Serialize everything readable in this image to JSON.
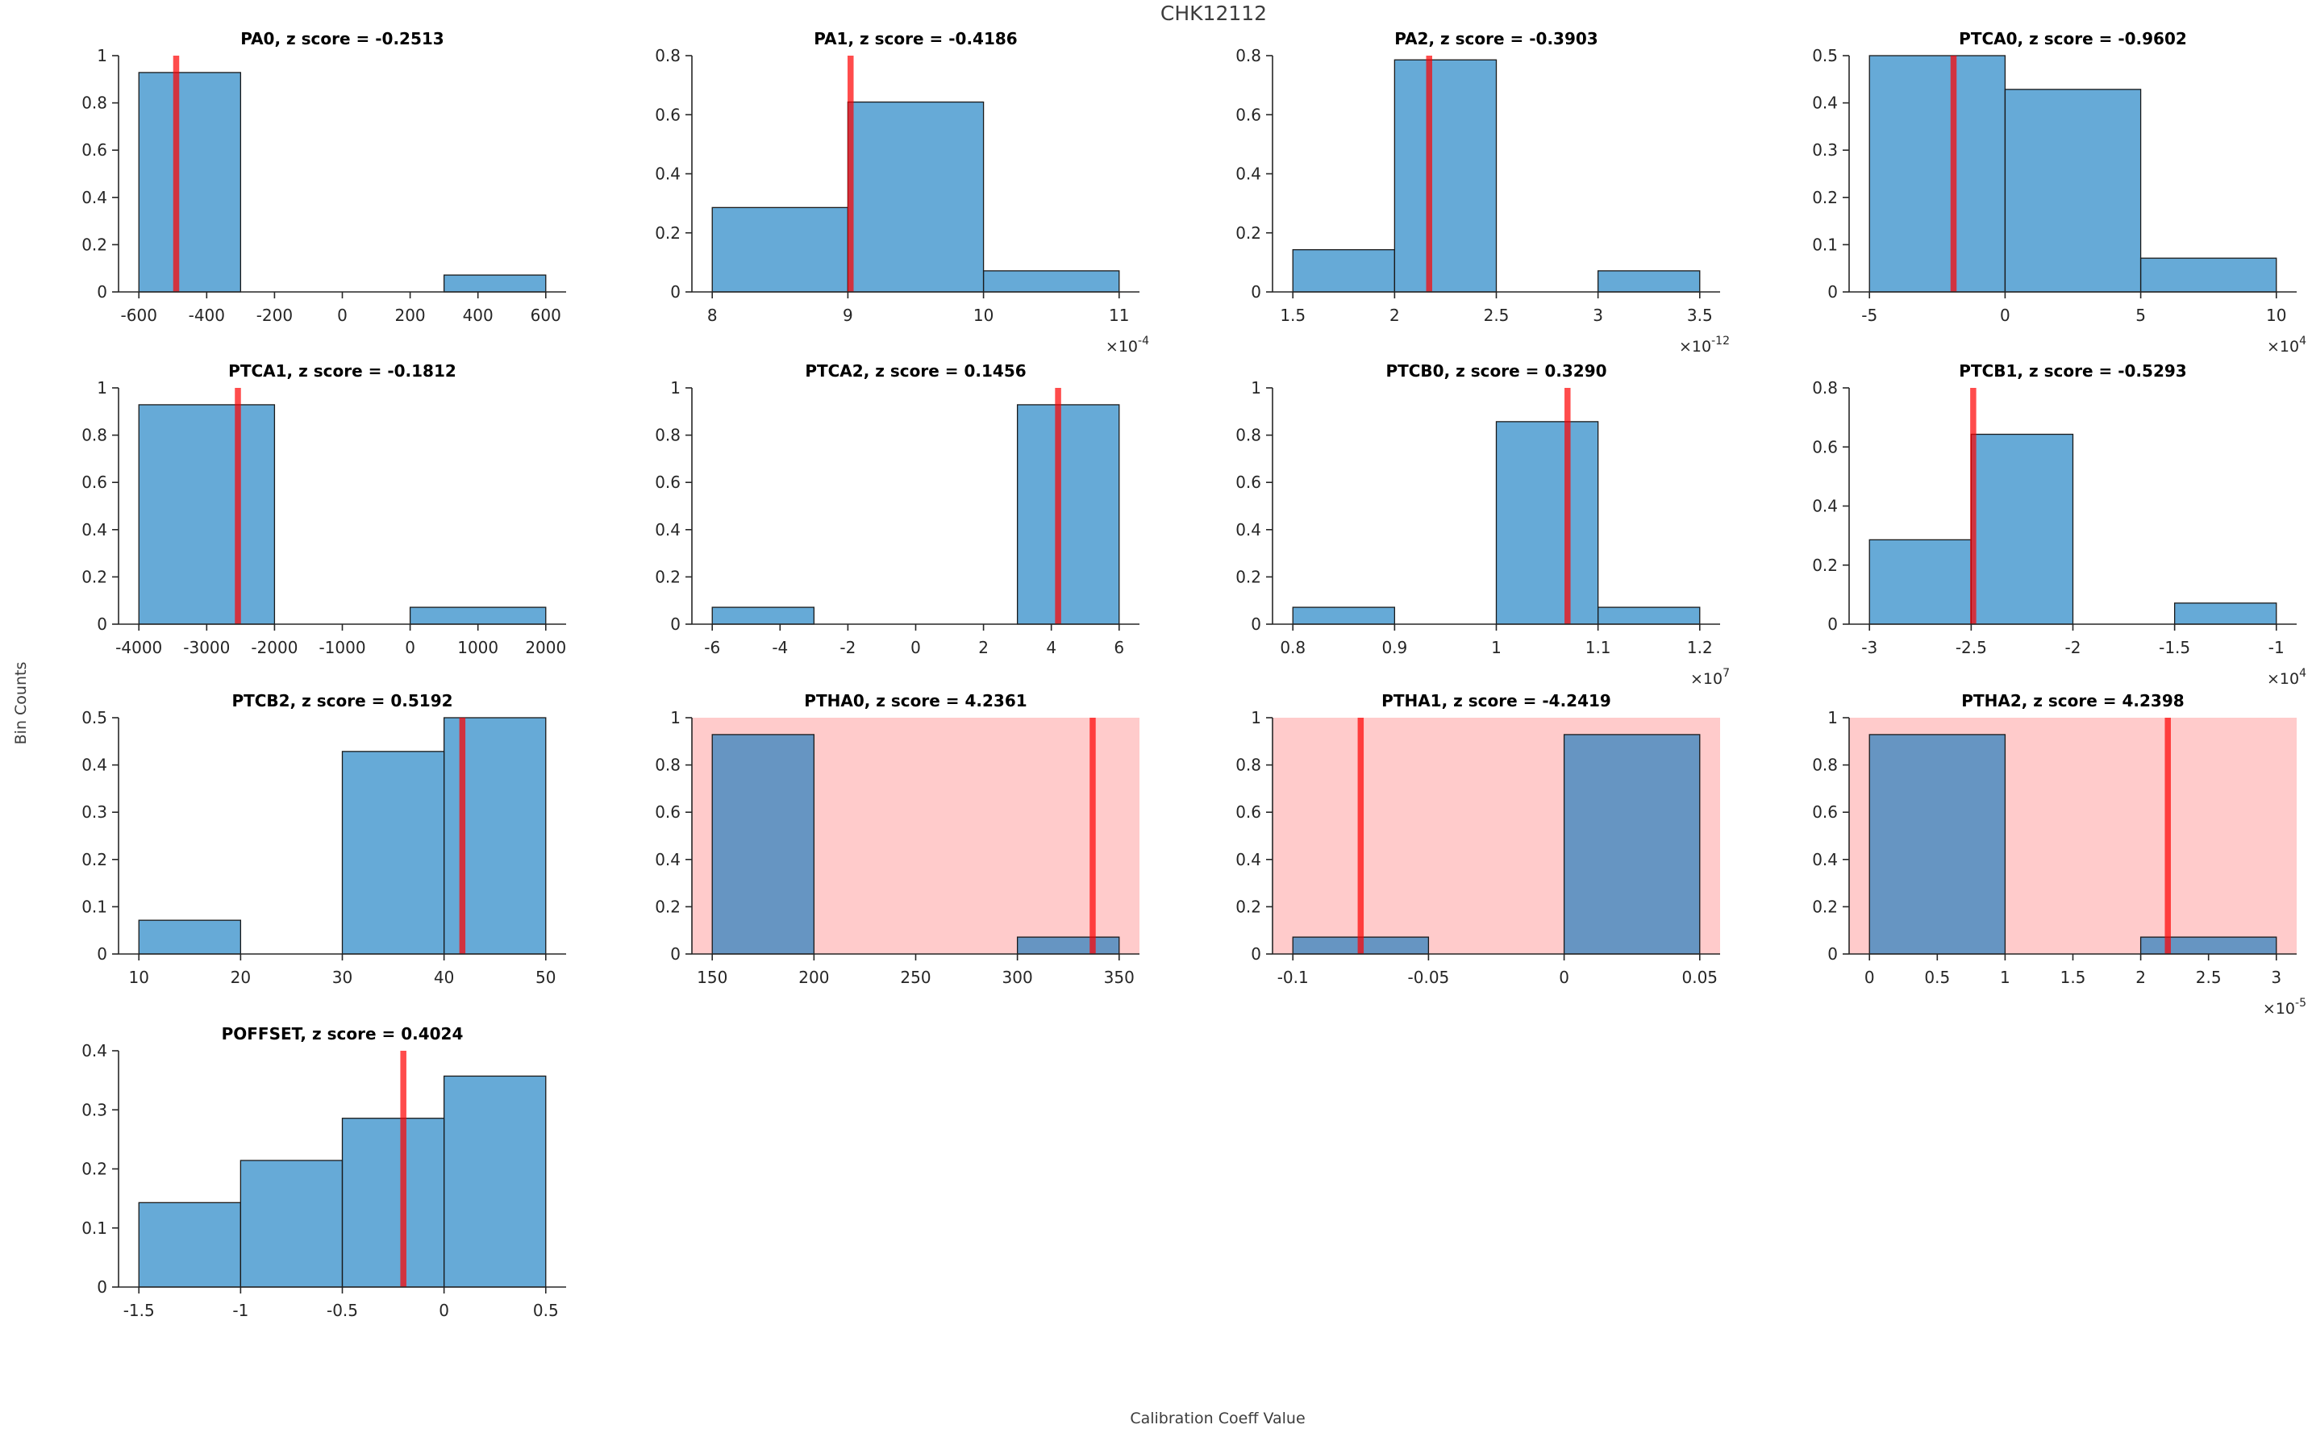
{
  "figure": {
    "title": "CHK12112",
    "ylabel": "Bin Counts",
    "xlabel": "Calibration Coeff Value",
    "colors": {
      "bar_fill": "#0072BD",
      "bar_fill_opacity": 0.6,
      "bar_edge": "#1a1a1a",
      "marker_line": "#FF0000",
      "marker_opacity": 0.7,
      "flagged_background": "#FFCBCB",
      "axis": "#262626",
      "subplot_title": "#000000",
      "figure_text": "#3c3c3c"
    }
  },
  "chart_data": [
    {
      "type": "histogram",
      "name": "PA0",
      "title": "PA0, z score = -0.2513",
      "z_score": -0.2513,
      "row": 0,
      "col": 0,
      "xlim": [
        -660,
        660
      ],
      "ymax": 1,
      "exp": null,
      "flagged": false,
      "marker": -490,
      "xticks": [
        -600,
        -400,
        -200,
        0,
        200,
        400,
        600
      ],
      "xtick_labels": [
        "-600",
        "-400",
        "-200",
        "0",
        "200",
        "400",
        "600"
      ],
      "yticks": [
        0,
        0.2,
        0.4,
        0.6,
        0.8,
        1
      ],
      "ytick_labels": [
        "0",
        "0.2",
        "0.4",
        "0.6",
        "0.8",
        "1"
      ],
      "bars": [
        [
          -600,
          -300,
          0.9286
        ],
        [
          300,
          600,
          0.0714
        ]
      ]
    },
    {
      "type": "histogram",
      "name": "PA1",
      "title": "PA1, z score = -0.4186",
      "z_score": -0.4186,
      "row": 0,
      "col": 1,
      "xlim": [
        7.85,
        11.15
      ],
      "ymax": 0.8,
      "exp": "-4",
      "flagged": false,
      "marker": 9.02,
      "xticks": [
        8,
        9,
        10,
        11
      ],
      "xtick_labels": [
        "8",
        "9",
        "10",
        "11"
      ],
      "yticks": [
        0,
        0.2,
        0.4,
        0.6,
        0.8
      ],
      "ytick_labels": [
        "0",
        "0.2",
        "0.4",
        "0.6",
        "0.8"
      ],
      "bars": [
        [
          8,
          9,
          0.2857
        ],
        [
          9,
          10,
          0.6429
        ],
        [
          10,
          11,
          0.0714
        ]
      ]
    },
    {
      "type": "histogram",
      "name": "PA2",
      "title": "PA2, z score = -0.3903",
      "z_score": -0.3903,
      "row": 0,
      "col": 2,
      "xlim": [
        1.4,
        3.6
      ],
      "ymax": 0.8,
      "exp": "-12",
      "flagged": false,
      "marker": 2.17,
      "xticks": [
        1.5,
        2,
        2.5,
        3,
        3.5
      ],
      "xtick_labels": [
        "1.5",
        "2",
        "2.5",
        "3",
        "3.5"
      ],
      "yticks": [
        0,
        0.2,
        0.4,
        0.6,
        0.8
      ],
      "ytick_labels": [
        "0",
        "0.2",
        "0.4",
        "0.6",
        "0.8"
      ],
      "bars": [
        [
          1.5,
          2,
          0.1429
        ],
        [
          2,
          2.5,
          0.7857
        ],
        [
          3,
          3.5,
          0.0714
        ]
      ]
    },
    {
      "type": "histogram",
      "name": "PTCA0",
      "title": "PTCA0, z score = -0.9602",
      "z_score": -0.9602,
      "row": 0,
      "col": 3,
      "xlim": [
        -5.75,
        10.75
      ],
      "ymax": 0.5,
      "exp": "4",
      "flagged": false,
      "marker": -1.9,
      "xticks": [
        -5,
        0,
        5,
        10
      ],
      "xtick_labels": [
        "-5",
        "0",
        "5",
        "10"
      ],
      "yticks": [
        0,
        0.1,
        0.2,
        0.3,
        0.4,
        0.5
      ],
      "ytick_labels": [
        "0",
        "0.1",
        "0.2",
        "0.3",
        "0.4",
        "0.5"
      ],
      "bars": [
        [
          -5,
          0,
          0.5
        ],
        [
          0,
          5,
          0.4286
        ],
        [
          5,
          10,
          0.0714
        ]
      ]
    },
    {
      "type": "histogram",
      "name": "PTCA1",
      "title": "PTCA1, z score = -0.1812",
      "z_score": -0.1812,
      "row": 1,
      "col": 0,
      "xlim": [
        -4300,
        2300
      ],
      "ymax": 1,
      "exp": null,
      "flagged": false,
      "marker": -2540,
      "xticks": [
        -4000,
        -3000,
        -2000,
        -1000,
        0,
        1000,
        2000
      ],
      "xtick_labels": [
        "-4000",
        "-3000",
        "-2000",
        "-1000",
        "0",
        "1000",
        "2000"
      ],
      "yticks": [
        0,
        0.2,
        0.4,
        0.6,
        0.8,
        1
      ],
      "ytick_labels": [
        "0",
        "0.2",
        "0.4",
        "0.6",
        "0.8",
        "1"
      ],
      "bars": [
        [
          -4000,
          -2000,
          0.9286
        ],
        [
          0,
          2000,
          0.0714
        ]
      ]
    },
    {
      "type": "histogram",
      "name": "PTCA2",
      "title": "PTCA2, z score = 0.1456",
      "z_score": 0.1456,
      "row": 1,
      "col": 1,
      "xlim": [
        -6.6,
        6.6
      ],
      "ymax": 1,
      "exp": null,
      "flagged": false,
      "marker": 4.2,
      "xticks": [
        -6,
        -4,
        -2,
        0,
        2,
        4,
        6
      ],
      "xtick_labels": [
        "-6",
        "-4",
        "-2",
        "0",
        "2",
        "4",
        "6"
      ],
      "yticks": [
        0,
        0.2,
        0.4,
        0.6,
        0.8,
        1
      ],
      "ytick_labels": [
        "0",
        "0.2",
        "0.4",
        "0.6",
        "0.8",
        "1"
      ],
      "bars": [
        [
          -6,
          -3,
          0.0714
        ],
        [
          3,
          6,
          0.9286
        ]
      ]
    },
    {
      "type": "histogram",
      "name": "PTCB0",
      "title": "PTCB0, z score = 0.3290",
      "z_score": 0.329,
      "row": 1,
      "col": 2,
      "xlim": [
        0.78,
        1.22
      ],
      "ymax": 1,
      "exp": "7",
      "flagged": false,
      "marker": 1.07,
      "xticks": [
        0.8,
        0.9,
        1,
        1.1,
        1.2
      ],
      "xtick_labels": [
        "0.8",
        "0.9",
        "1",
        "1.1",
        "1.2"
      ],
      "yticks": [
        0,
        0.2,
        0.4,
        0.6,
        0.8,
        1
      ],
      "ytick_labels": [
        "0",
        "0.2",
        "0.4",
        "0.6",
        "0.8",
        "1"
      ],
      "bars": [
        [
          0.8,
          0.9,
          0.0714
        ],
        [
          1,
          1.1,
          0.8571
        ],
        [
          1.1,
          1.2,
          0.0714
        ]
      ]
    },
    {
      "type": "histogram",
      "name": "PTCB1",
      "title": "PTCB1, z score = -0.5293",
      "z_score": -0.5293,
      "row": 1,
      "col": 3,
      "xlim": [
        -3.1,
        -0.9
      ],
      "ymax": 0.8,
      "exp": "4",
      "flagged": false,
      "marker": -2.49,
      "xticks": [
        -3,
        -2.5,
        -2,
        -1.5,
        -1
      ],
      "xtick_labels": [
        "-3",
        "-2.5",
        "-2",
        "-1.5",
        "-1"
      ],
      "yticks": [
        0,
        0.2,
        0.4,
        0.6,
        0.8
      ],
      "ytick_labels": [
        "0",
        "0.2",
        "0.4",
        "0.6",
        "0.8"
      ],
      "bars": [
        [
          -3,
          -2.5,
          0.2857
        ],
        [
          -2.5,
          -2,
          0.6429
        ],
        [
          -1.5,
          -1,
          0.0714
        ]
      ]
    },
    {
      "type": "histogram",
      "name": "PTCB2",
      "title": "PTCB2, z score = 0.5192",
      "z_score": 0.5192,
      "row": 2,
      "col": 0,
      "xlim": [
        8,
        52
      ],
      "ymax": 0.5,
      "exp": null,
      "flagged": false,
      "marker": 41.8,
      "xticks": [
        10,
        20,
        30,
        40,
        50
      ],
      "xtick_labels": [
        "10",
        "20",
        "30",
        "40",
        "50"
      ],
      "yticks": [
        0,
        0.1,
        0.2,
        0.3,
        0.4,
        0.5
      ],
      "ytick_labels": [
        "0",
        "0.1",
        "0.2",
        "0.3",
        "0.4",
        "0.5"
      ],
      "bars": [
        [
          10,
          20,
          0.0714
        ],
        [
          30,
          40,
          0.4286
        ],
        [
          40,
          50,
          0.5
        ]
      ]
    },
    {
      "type": "histogram",
      "name": "PTHA0",
      "title": "PTHA0, z score = 4.2361",
      "z_score": 4.2361,
      "row": 2,
      "col": 1,
      "xlim": [
        140,
        360
      ],
      "ymax": 1,
      "exp": null,
      "flagged": true,
      "marker": 337,
      "xticks": [
        150,
        200,
        250,
        300,
        350
      ],
      "xtick_labels": [
        "150",
        "200",
        "250",
        "300",
        "350"
      ],
      "yticks": [
        0,
        0.2,
        0.4,
        0.6,
        0.8,
        1
      ],
      "ytick_labels": [
        "0",
        "0.2",
        "0.4",
        "0.6",
        "0.8",
        "1"
      ],
      "bars": [
        [
          150,
          200,
          0.9286
        ],
        [
          300,
          350,
          0.0714
        ]
      ]
    },
    {
      "type": "histogram",
      "name": "PTHA1",
      "title": "PTHA1, z score = -4.2419",
      "z_score": -4.2419,
      "row": 2,
      "col": 2,
      "xlim": [
        -0.1075,
        0.0575
      ],
      "ymax": 1,
      "exp": null,
      "flagged": true,
      "marker": -0.075,
      "xticks": [
        -0.1,
        -0.05,
        0,
        0.05
      ],
      "xtick_labels": [
        "-0.1",
        "-0.05",
        "0",
        "0.05"
      ],
      "yticks": [
        0,
        0.2,
        0.4,
        0.6,
        0.8,
        1
      ],
      "ytick_labels": [
        "0",
        "0.2",
        "0.4",
        "0.6",
        "0.8",
        "1"
      ],
      "bars": [
        [
          -0.1,
          -0.05,
          0.0714
        ],
        [
          0,
          0.05,
          0.9286
        ]
      ]
    },
    {
      "type": "histogram",
      "name": "PTHA2",
      "title": "PTHA2, z score = 4.2398",
      "z_score": 4.2398,
      "row": 2,
      "col": 3,
      "xlim": [
        -0.15,
        3.15
      ],
      "ymax": 1,
      "exp": "-5",
      "flagged": true,
      "marker": 2.2,
      "xticks": [
        0,
        0.5,
        1,
        1.5,
        2,
        2.5,
        3
      ],
      "xtick_labels": [
        "0",
        "0.5",
        "1",
        "1.5",
        "2",
        "2.5",
        "3"
      ],
      "yticks": [
        0,
        0.2,
        0.4,
        0.6,
        0.8,
        1
      ],
      "ytick_labels": [
        "0",
        "0.2",
        "0.4",
        "0.6",
        "0.8",
        "1"
      ],
      "bars": [
        [
          0,
          1,
          0.9286
        ],
        [
          2,
          3,
          0.0714
        ]
      ]
    },
    {
      "type": "histogram",
      "name": "POFFSET",
      "title": "POFFSET, z score = 0.4024",
      "z_score": 0.4024,
      "row": 3,
      "col": 0,
      "xlim": [
        -1.6,
        0.6
      ],
      "ymax": 0.4,
      "exp": null,
      "flagged": false,
      "marker": -0.2,
      "xticks": [
        -1.5,
        -1,
        -0.5,
        0,
        0.5
      ],
      "xtick_labels": [
        "-1.5",
        "-1",
        "-0.5",
        "0",
        "0.5"
      ],
      "yticks": [
        0,
        0.1,
        0.2,
        0.3,
        0.4
      ],
      "ytick_labels": [
        "0",
        "0.1",
        "0.2",
        "0.3",
        "0.4"
      ],
      "bars": [
        [
          -1.5,
          -1,
          0.1429
        ],
        [
          -1,
          -0.5,
          0.2143
        ],
        [
          -0.5,
          0,
          0.2857
        ],
        [
          0,
          0.5,
          0.3571
        ]
      ]
    }
  ]
}
